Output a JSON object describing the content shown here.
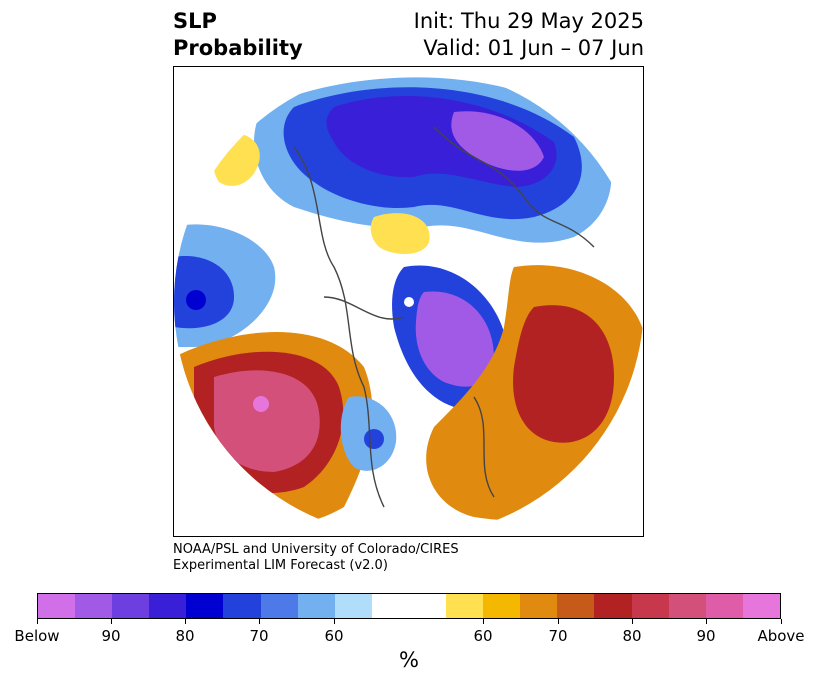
{
  "header": {
    "title_line1": "SLP",
    "title_line2": "Probability",
    "init": "Init: Thu 29 May 2025",
    "valid": "Valid: 01 Jun – 07 Jun"
  },
  "credit": {
    "line1": "NOAA/PSL and University of Colorado/CIRES",
    "line2": "Experimental LIM Forecast (v2.0)"
  },
  "colorbar": {
    "unit": "%",
    "colors": [
      "#d16fe8",
      "#a05ae6",
      "#6d3ee0",
      "#3a1fd8",
      "#0000d0",
      "#2342dc",
      "#4e79e8",
      "#72b0f0",
      "#b0ddfa",
      "#ffffff",
      "#ffffff",
      "#ffe050",
      "#f5b800",
      "#e08a10",
      "#c65a18",
      "#b22222",
      "#c8384c",
      "#d2507a",
      "#de5ca8",
      "#e676dc"
    ],
    "ticks": [
      "Below",
      "90",
      "80",
      "70",
      "60",
      "60",
      "70",
      "80",
      "90",
      "Above"
    ]
  },
  "legend_colors": {
    "below_extreme": "#d16fe8",
    "above_extreme": "#e676dc",
    "neutral": "#ffffff"
  }
}
